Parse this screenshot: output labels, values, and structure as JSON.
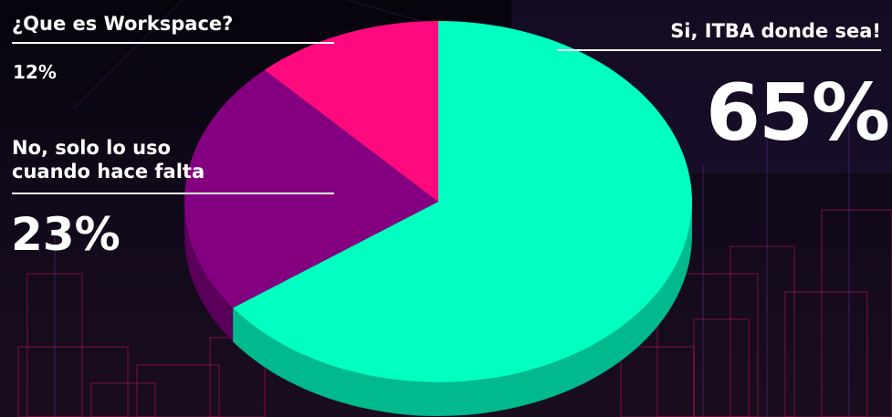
{
  "colors": {
    "background": "#0b0612",
    "text": "#ffffff",
    "slice_top": [
      "#00ffc0",
      "#850080",
      "#ff0a7e"
    ],
    "slice_side": [
      "#00b98c",
      "#5a005a",
      "#b5005a"
    ]
  },
  "chart_data": {
    "type": "pie",
    "style": "3d",
    "slices": [
      {
        "label": "Si, ITBA donde sea!",
        "value": 65,
        "display": "65%"
      },
      {
        "label": "No, solo lo uso\ncuando hace falta",
        "value": 23,
        "display": "23%"
      },
      {
        "label": "¿Que es Workspace?",
        "value": 12,
        "display": "12%"
      }
    ],
    "start": "top, clockwise"
  }
}
